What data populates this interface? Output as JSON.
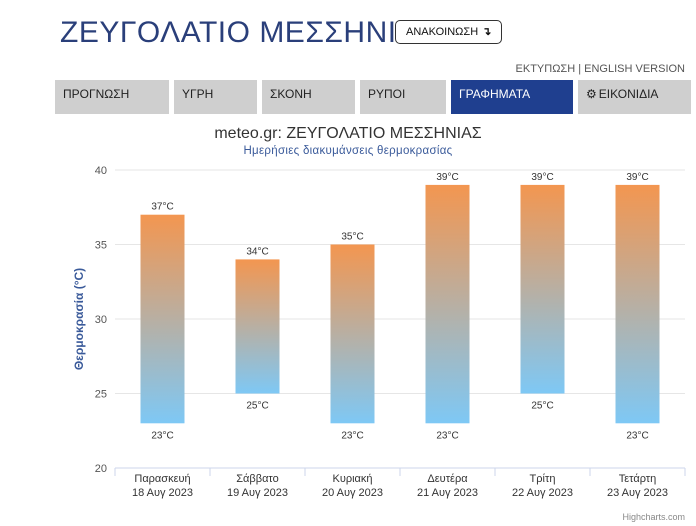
{
  "header": {
    "title": "ΖΕΥΓΟΛΑΤΙΟ ΜΕΣΣΗΝΙΑΣ",
    "announce_label": "ΑΝΑΚΟΙΝΩΣΗ",
    "announce_icon": "arrow-return-icon"
  },
  "top_links": {
    "print": "ΕΚΤΥΠΩΣΗ",
    "separator": "|",
    "english": "ENGLISH VERSION"
  },
  "nav": {
    "tabs": [
      {
        "label": "ΠΡΟΓΝΩΣΗ",
        "active": false
      },
      {
        "label": "ΥΓΡΗ",
        "active": false
      },
      {
        "label": "ΣΚΟΝΗ",
        "active": false
      },
      {
        "label": "ΡΥΠΟΙ",
        "active": false
      },
      {
        "label": "ΓΡΑΦΗΜΑΤΑ",
        "active": true
      },
      {
        "label": "ΕΙΚΟΝΙΔΙΑ",
        "active": false,
        "icon": "gear-icon"
      }
    ],
    "active_color": "#1f3f8f",
    "inactive_color": "#cfcfcf"
  },
  "chart_data": {
    "type": "bar",
    "subtype": "column-range",
    "title": "meteo.gr: ΖΕΥΓΟΛΑΤΙΟ ΜΕΣΣΗΝΙΑΣ",
    "subtitle": "Ημερήσιες διακυμάνσεις θερμοκρασίας",
    "ylabel": "Θερμοκρασία (°C)",
    "xlabel": "",
    "ylim": [
      20,
      40
    ],
    "yticks": [
      20,
      25,
      30,
      35,
      40
    ],
    "grid": true,
    "legend": "none",
    "categories": [
      {
        "day": "Παρασκευή",
        "date": "18 Αυγ 2023"
      },
      {
        "day": "Σάββατο",
        "date": "19 Αυγ 2023"
      },
      {
        "day": "Κυριακή",
        "date": "20 Αυγ 2023"
      },
      {
        "day": "Δευτέρα",
        "date": "21 Αυγ 2023"
      },
      {
        "day": "Τρίτη",
        "date": "22 Αυγ 2023"
      },
      {
        "day": "Τετάρτη",
        "date": "23 Αυγ 2023"
      }
    ],
    "series": [
      {
        "low": [
          23,
          25,
          23,
          23,
          25,
          23
        ],
        "high": [
          37,
          34,
          35,
          39,
          39,
          39
        ]
      }
    ],
    "unit": "°C",
    "gradient_top_color": "#f39650",
    "gradient_bottom_color": "#7ec8f5",
    "axis_label_color": "#3a5a9a"
  },
  "credits": "Highcharts.com"
}
